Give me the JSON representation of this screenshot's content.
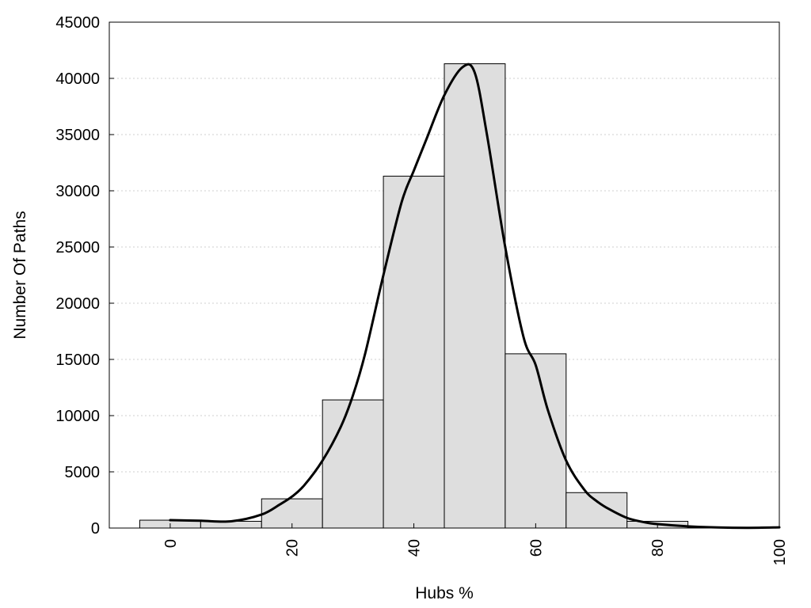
{
  "chart_data": {
    "type": "bar",
    "xlabel": "Hubs %",
    "ylabel": "Number Of Paths",
    "xlim": [
      -10,
      100
    ],
    "ylim": [
      0,
      45000
    ],
    "x_ticks": [
      "0",
      "20",
      "40",
      "60",
      "80",
      "100"
    ],
    "x_tick_values": [
      0,
      20,
      40,
      60,
      80,
      100
    ],
    "y_ticks": [
      "0",
      "5000",
      "10000",
      "15000",
      "20000",
      "25000",
      "30000",
      "35000",
      "40000",
      "45000"
    ],
    "y_tick_values": [
      0,
      5000,
      10000,
      15000,
      20000,
      25000,
      30000,
      35000,
      40000,
      45000
    ],
    "grid": "horizontal-dotted",
    "bar_color": "#dedede",
    "curve_color": "#000000",
    "bins": [
      {
        "x0": -5,
        "x1": 5,
        "value": 700
      },
      {
        "x0": 5,
        "x1": 15,
        "value": 600
      },
      {
        "x0": 15,
        "x1": 25,
        "value": 2600
      },
      {
        "x0": 25,
        "x1": 35,
        "value": 11400
      },
      {
        "x0": 35,
        "x1": 45,
        "value": 31300
      },
      {
        "x0": 45,
        "x1": 55,
        "value": 41300
      },
      {
        "x0": 55,
        "x1": 65,
        "value": 15500
      },
      {
        "x0": 65,
        "x1": 75,
        "value": 3150
      },
      {
        "x0": 75,
        "x1": 85,
        "value": 600
      },
      {
        "x0": 85,
        "x1": 95,
        "value": 60
      },
      {
        "x0": 95,
        "x1": 100,
        "value": 30
      }
    ],
    "density_curve": {
      "x": [
        0,
        5,
        10,
        15,
        18,
        20,
        22,
        25,
        28,
        30,
        32,
        35,
        38,
        40,
        42,
        45,
        48,
        50,
        52,
        55,
        58,
        60,
        62,
        65,
        68,
        70,
        72,
        75,
        78,
        80,
        85,
        90,
        95,
        100
      ],
      "y": [
        700,
        650,
        600,
        1200,
        2100,
        2800,
        3800,
        6000,
        9000,
        11800,
        15500,
        22500,
        29000,
        31800,
        34500,
        38500,
        41000,
        40500,
        35000,
        25000,
        17000,
        14500,
        10500,
        6000,
        3400,
        2400,
        1700,
        900,
        500,
        350,
        150,
        50,
        20,
        60
      ]
    }
  }
}
